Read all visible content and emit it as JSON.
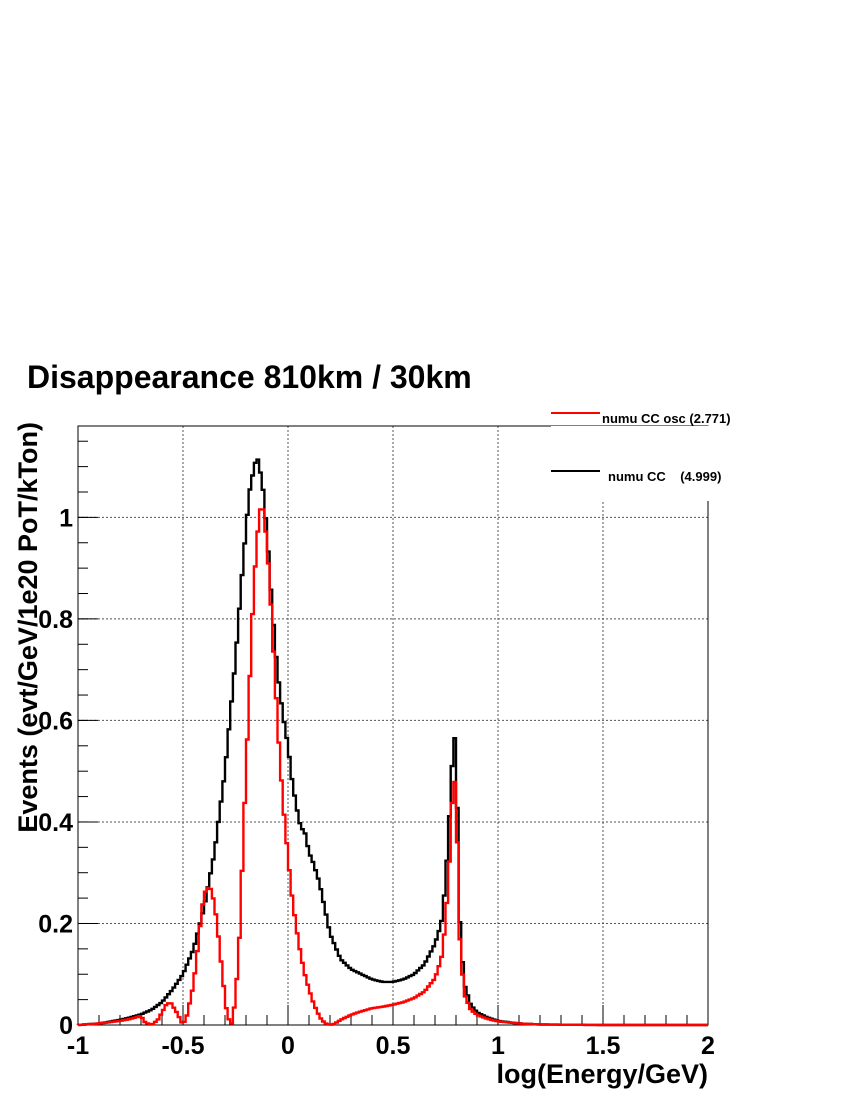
{
  "chart_data": {
    "type": "line",
    "title": "Disappearance 810km / 30km",
    "xlabel": "log(Energy/GeV)",
    "ylabel": "Events (evt/GeV/1e20 PoT/kTon)",
    "xlim": [
      -1,
      2
    ],
    "ylim": [
      0,
      1.18
    ],
    "x_ticks": [
      -1,
      -0.5,
      0,
      0.5,
      1,
      1.5,
      2
    ],
    "x_tick_labels": [
      "-1",
      "-0.5",
      "0",
      "0.5",
      "1",
      "1.5",
      "2"
    ],
    "y_ticks": [
      0,
      0.2,
      0.4,
      0.6,
      0.8,
      1
    ],
    "y_tick_labels": [
      "0",
      "0.2",
      "0.4",
      "0.6",
      "0.8",
      "1"
    ],
    "grid": true,
    "legend_position": "top-right",
    "series": [
      {
        "name": "numu CC osc (2.771)",
        "color": "#ff0000",
        "points": [
          [
            -1.0,
            0.0
          ],
          [
            -0.9,
            0.003
          ],
          [
            -0.8,
            0.008
          ],
          [
            -0.75,
            0.012
          ],
          [
            -0.7,
            0.018
          ],
          [
            -0.68,
            0.005
          ],
          [
            -0.65,
            0.0
          ],
          [
            -0.62,
            0.01
          ],
          [
            -0.58,
            0.04
          ],
          [
            -0.56,
            0.045
          ],
          [
            -0.53,
            0.025
          ],
          [
            -0.5,
            0.0
          ],
          [
            -0.48,
            0.02
          ],
          [
            -0.45,
            0.08
          ],
          [
            -0.43,
            0.15
          ],
          [
            -0.41,
            0.23
          ],
          [
            -0.39,
            0.27
          ],
          [
            -0.37,
            0.27
          ],
          [
            -0.35,
            0.24
          ],
          [
            -0.33,
            0.17
          ],
          [
            -0.31,
            0.09
          ],
          [
            -0.29,
            0.02
          ],
          [
            -0.27,
            0.0
          ],
          [
            -0.25,
            0.05
          ],
          [
            -0.23,
            0.18
          ],
          [
            -0.21,
            0.4
          ],
          [
            -0.19,
            0.6
          ],
          [
            -0.17,
            0.8
          ],
          [
            -0.15,
            0.95
          ],
          [
            -0.13,
            1.02
          ],
          [
            -0.12,
            1.02
          ],
          [
            -0.1,
            0.95
          ],
          [
            -0.08,
            0.82
          ],
          [
            -0.06,
            0.67
          ],
          [
            -0.04,
            0.53
          ],
          [
            -0.02,
            0.42
          ],
          [
            0.0,
            0.33
          ],
          [
            0.02,
            0.25
          ],
          [
            0.04,
            0.19
          ],
          [
            0.06,
            0.14
          ],
          [
            0.08,
            0.1
          ],
          [
            0.1,
            0.07
          ],
          [
            0.12,
            0.045
          ],
          [
            0.14,
            0.025
          ],
          [
            0.16,
            0.01
          ],
          [
            0.18,
            0.003
          ],
          [
            0.2,
            0.0
          ],
          [
            0.22,
            0.002
          ],
          [
            0.25,
            0.01
          ],
          [
            0.3,
            0.02
          ],
          [
            0.35,
            0.027
          ],
          [
            0.4,
            0.033
          ],
          [
            0.45,
            0.036
          ],
          [
            0.5,
            0.04
          ],
          [
            0.55,
            0.045
          ],
          [
            0.6,
            0.053
          ],
          [
            0.65,
            0.066
          ],
          [
            0.7,
            0.092
          ],
          [
            0.73,
            0.13
          ],
          [
            0.75,
            0.2
          ],
          [
            0.77,
            0.33
          ],
          [
            0.78,
            0.43
          ],
          [
            0.79,
            0.49
          ],
          [
            0.8,
            0.46
          ],
          [
            0.81,
            0.3
          ],
          [
            0.82,
            0.15
          ],
          [
            0.84,
            0.06
          ],
          [
            0.87,
            0.03
          ],
          [
            0.9,
            0.02
          ],
          [
            0.95,
            0.012
          ],
          [
            1.0,
            0.007
          ],
          [
            1.1,
            0.003
          ],
          [
            1.2,
            0.001
          ],
          [
            1.5,
            0.0
          ],
          [
            2.0,
            0.0
          ]
        ]
      },
      {
        "name": "numu CC    (4.999)",
        "color": "#000000",
        "points": [
          [
            -1.0,
            0.0
          ],
          [
            -0.9,
            0.003
          ],
          [
            -0.8,
            0.01
          ],
          [
            -0.75,
            0.015
          ],
          [
            -0.7,
            0.021
          ],
          [
            -0.65,
            0.03
          ],
          [
            -0.6,
            0.045
          ],
          [
            -0.55,
            0.07
          ],
          [
            -0.5,
            0.1
          ],
          [
            -0.45,
            0.15
          ],
          [
            -0.4,
            0.23
          ],
          [
            -0.35,
            0.34
          ],
          [
            -0.3,
            0.5
          ],
          [
            -0.25,
            0.72
          ],
          [
            -0.22,
            0.88
          ],
          [
            -0.2,
            0.98
          ],
          [
            -0.18,
            1.06
          ],
          [
            -0.16,
            1.1
          ],
          [
            -0.15,
            1.12
          ],
          [
            -0.14,
            1.11
          ],
          [
            -0.12,
            1.06
          ],
          [
            -0.1,
            0.97
          ],
          [
            -0.08,
            0.85
          ],
          [
            -0.06,
            0.74
          ],
          [
            -0.04,
            0.66
          ],
          [
            -0.02,
            0.6
          ],
          [
            0.0,
            0.55
          ],
          [
            0.02,
            0.48
          ],
          [
            0.04,
            0.43
          ],
          [
            0.06,
            0.39
          ],
          [
            0.08,
            0.38
          ],
          [
            0.1,
            0.34
          ],
          [
            0.12,
            0.32
          ],
          [
            0.15,
            0.28
          ],
          [
            0.18,
            0.22
          ],
          [
            0.2,
            0.18
          ],
          [
            0.25,
            0.13
          ],
          [
            0.3,
            0.11
          ],
          [
            0.35,
            0.1
          ],
          [
            0.4,
            0.09
          ],
          [
            0.45,
            0.085
          ],
          [
            0.5,
            0.085
          ],
          [
            0.55,
            0.09
          ],
          [
            0.6,
            0.1
          ],
          [
            0.65,
            0.12
          ],
          [
            0.7,
            0.16
          ],
          [
            0.73,
            0.2
          ],
          [
            0.75,
            0.28
          ],
          [
            0.77,
            0.42
          ],
          [
            0.78,
            0.5
          ],
          [
            0.79,
            0.58
          ],
          [
            0.8,
            0.54
          ],
          [
            0.81,
            0.36
          ],
          [
            0.82,
            0.18
          ],
          [
            0.84,
            0.08
          ],
          [
            0.87,
            0.04
          ],
          [
            0.9,
            0.025
          ],
          [
            0.95,
            0.015
          ],
          [
            1.0,
            0.008
          ],
          [
            1.1,
            0.003
          ],
          [
            1.2,
            0.001
          ],
          [
            1.5,
            0.0
          ],
          [
            2.0,
            0.0
          ]
        ]
      }
    ]
  }
}
